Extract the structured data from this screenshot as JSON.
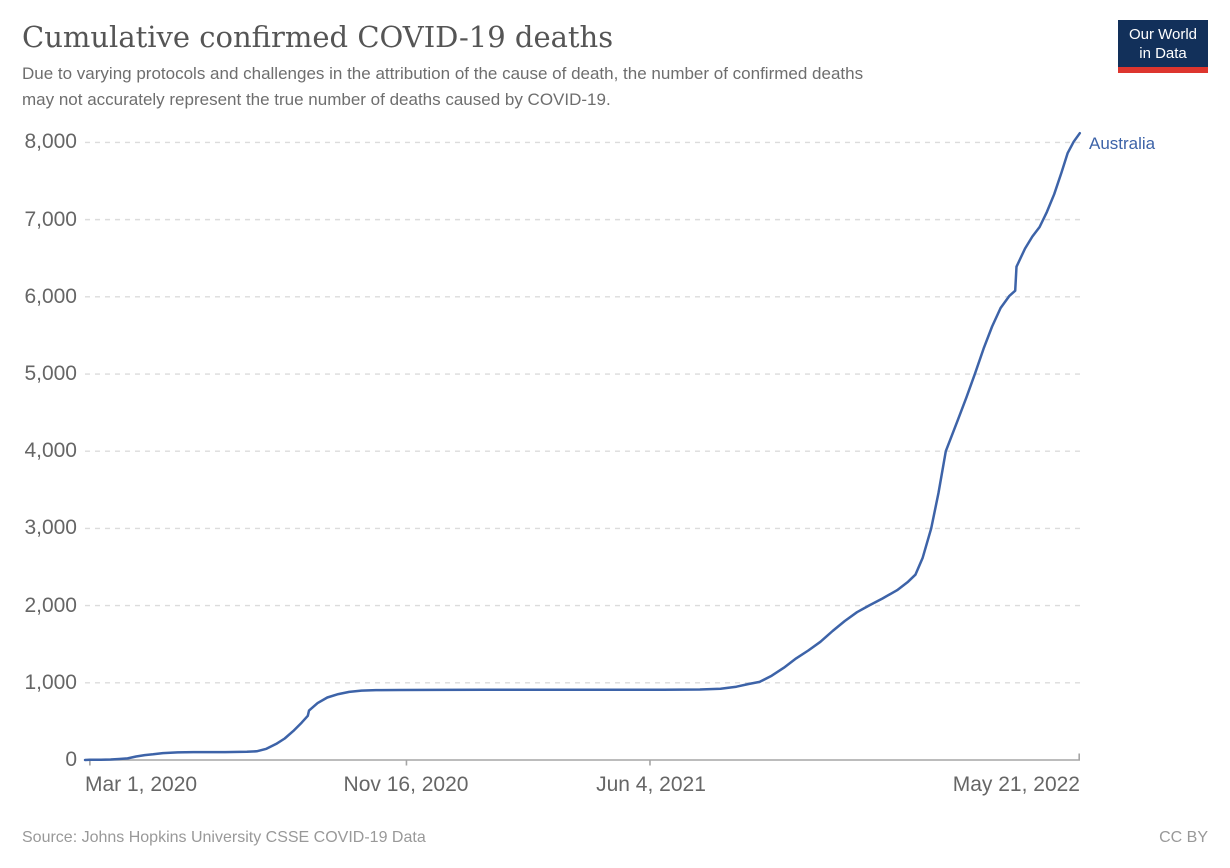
{
  "header": {
    "title": "Cumulative confirmed COVID-19 deaths",
    "subtitle_line1": "Due to varying protocols and challenges in the attribution of the cause of death, the number of confirmed deaths",
    "subtitle_line2": "may not accurately represent the true number of deaths caused by COVID-19.",
    "logo_line1": "Our World",
    "logo_line2": "in Data",
    "logo_bg_color": "#12305a",
    "logo_stripe_color": "#dd352e"
  },
  "footer": {
    "source": "Source: Johns Hopkins University CSSE COVID-19 Data",
    "license": "CC BY"
  },
  "chart_data": {
    "type": "line",
    "title": "Cumulative confirmed COVID-19 deaths",
    "xlabel": "",
    "ylabel": "",
    "grid": true,
    "grid_style": "dashed",
    "grid_color": "#dcdcdc",
    "axis_color": "#a5a5a5",
    "ylim": [
      0,
      8200
    ],
    "x_domain": [
      "2020-02-26",
      "2022-05-24"
    ],
    "legend_position": "end-of-line",
    "y_ticks": [
      {
        "value": 0,
        "label": "0"
      },
      {
        "value": 1000,
        "label": "1,000"
      },
      {
        "value": 2000,
        "label": "2,000"
      },
      {
        "value": 3000,
        "label": "3,000"
      },
      {
        "value": 4000,
        "label": "4,000"
      },
      {
        "value": 5000,
        "label": "5,000"
      },
      {
        "value": 6000,
        "label": "6,000"
      },
      {
        "value": 7000,
        "label": "7,000"
      },
      {
        "value": 8000,
        "label": "8,000"
      }
    ],
    "x_ticks": [
      {
        "date": "2020-03-01",
        "label": "Mar 1, 2020"
      },
      {
        "date": "2020-11-16",
        "label": "Nov 16, 2020"
      },
      {
        "date": "2021-06-04",
        "label": "Jun 4, 2021"
      },
      {
        "date": "2022-05-21",
        "label": "May 21, 2022"
      }
    ],
    "series": [
      {
        "name": "Australia",
        "color": "#3d63a8",
        "points": [
          [
            "2020-02-26",
            0
          ],
          [
            "2020-03-01",
            2
          ],
          [
            "2020-03-10",
            3
          ],
          [
            "2020-03-18",
            7
          ],
          [
            "2020-03-25",
            13
          ],
          [
            "2020-04-01",
            21
          ],
          [
            "2020-04-08",
            45
          ],
          [
            "2020-04-15",
            63
          ],
          [
            "2020-04-22",
            74
          ],
          [
            "2020-04-30",
            89
          ],
          [
            "2020-05-12",
            98
          ],
          [
            "2020-05-25",
            102
          ],
          [
            "2020-06-20",
            102
          ],
          [
            "2020-07-08",
            106
          ],
          [
            "2020-07-16",
            113
          ],
          [
            "2020-07-24",
            145
          ],
          [
            "2020-08-01",
            208
          ],
          [
            "2020-08-08",
            278
          ],
          [
            "2020-08-15",
            375
          ],
          [
            "2020-08-22",
            485
          ],
          [
            "2020-08-27",
            572
          ],
          [
            "2020-08-28",
            640
          ],
          [
            "2020-09-04",
            737
          ],
          [
            "2020-09-12",
            810
          ],
          [
            "2020-09-21",
            854
          ],
          [
            "2020-09-30",
            882
          ],
          [
            "2020-10-10",
            899
          ],
          [
            "2020-10-22",
            905
          ],
          [
            "2020-11-10",
            907
          ],
          [
            "2020-12-10",
            908
          ],
          [
            "2021-01-20",
            909
          ],
          [
            "2021-03-15",
            909
          ],
          [
            "2021-05-01",
            910
          ],
          [
            "2021-06-15",
            910
          ],
          [
            "2021-07-15",
            913
          ],
          [
            "2021-08-01",
            924
          ],
          [
            "2021-08-14",
            949
          ],
          [
            "2021-08-24",
            984
          ],
          [
            "2021-09-02",
            1012
          ],
          [
            "2021-09-12",
            1092
          ],
          [
            "2021-09-22",
            1196
          ],
          [
            "2021-10-02",
            1316
          ],
          [
            "2021-10-12",
            1418
          ],
          [
            "2021-10-22",
            1531
          ],
          [
            "2021-11-01",
            1671
          ],
          [
            "2021-11-11",
            1800
          ],
          [
            "2021-11-21",
            1915
          ],
          [
            "2021-12-01",
            2002
          ],
          [
            "2021-12-12",
            2092
          ],
          [
            "2021-12-24",
            2200
          ],
          [
            "2022-01-02",
            2310
          ],
          [
            "2022-01-08",
            2400
          ],
          [
            "2022-01-14",
            2620
          ],
          [
            "2022-01-21",
            3000
          ],
          [
            "2022-01-27",
            3460
          ],
          [
            "2022-02-02",
            4000
          ],
          [
            "2022-02-12",
            4410
          ],
          [
            "2022-02-19",
            4700
          ],
          [
            "2022-02-26",
            5010
          ],
          [
            "2022-03-05",
            5330
          ],
          [
            "2022-03-12",
            5615
          ],
          [
            "2022-03-19",
            5855
          ],
          [
            "2022-03-26",
            6010
          ],
          [
            "2022-03-31",
            6080
          ],
          [
            "2022-04-01",
            6390
          ],
          [
            "2022-04-08",
            6625
          ],
          [
            "2022-04-14",
            6780
          ],
          [
            "2022-04-20",
            6905
          ],
          [
            "2022-04-26",
            7100
          ],
          [
            "2022-05-02",
            7330
          ],
          [
            "2022-05-08",
            7610
          ],
          [
            "2022-05-13",
            7860
          ],
          [
            "2022-05-18",
            8010
          ],
          [
            "2022-05-23",
            8120
          ]
        ]
      }
    ]
  }
}
